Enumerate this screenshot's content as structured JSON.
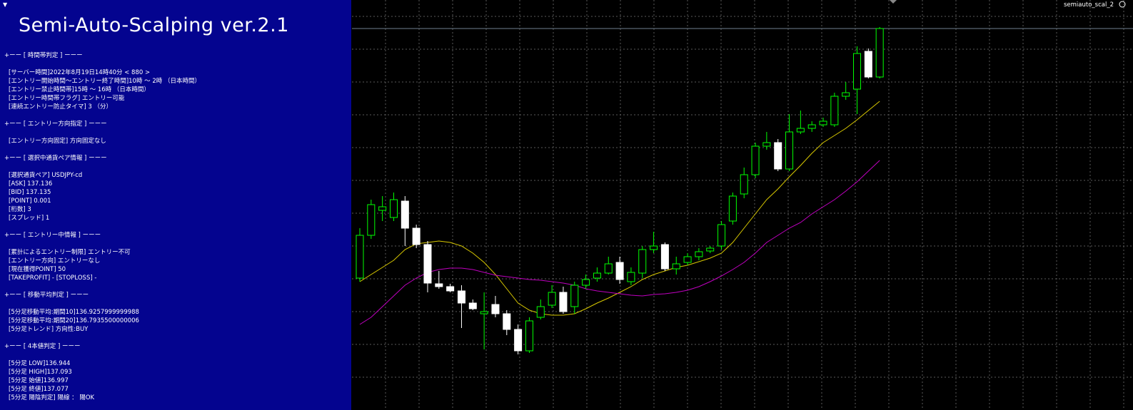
{
  "panel": {
    "title": "Semi-Auto-Scalping ver.2.1",
    "sections": [
      {
        "heading": "+ーー [ 時間帯判定 ] ーーー",
        "items": [
          "[サーバー時間]2022年8月19日14時40分 < 880 >",
          "[エントリー開始時間～エントリー終了時間]10時 ～ 2時 （日本時間）",
          "[エントリー禁止時間帯]15時 ～ 16時 （日本時間）",
          "[エントリー時間帯フラグ] エントリー可能",
          "[連続エントリー防止タイマ] 3 （分）"
        ]
      },
      {
        "heading": "+ーー [ エントリー方向指定 ] ーーー",
        "items": [
          "[エントリー方向固定] 方向固定なし"
        ]
      },
      {
        "heading": "+ーー [ 選択中通貨ペア情報 ] ーーー",
        "items": [
          "[選択通貨ペア] USDJPY-cd",
          "[ASK] 137.136",
          "[BID] 137.135",
          "[POINT] 0.001",
          "[桁数] 3",
          "[スプレッド] 1"
        ]
      },
      {
        "heading": "+ーー [ エントリー中情報 ] ーーー",
        "items": [
          "[累計によるエントリー制限] エントリー不可",
          "[エントリー方向] エントリーなし",
          "[現在獲得POINT] 50",
          "[TAKEPROFIT] - [STOPLOSS] -"
        ]
      },
      {
        "heading": "+ーー [ 移動平均判定 ] ーーー",
        "items": [
          "[5分足移動平均:期間10]136.9257999999988",
          "[5分足移動平均:期間20]136.7935500000006",
          "[5分足トレンド] 方向性:BUY"
        ]
      },
      {
        "heading": "+ーー [ 4本値判定 ] ーーー",
        "items": [
          "[5分足 LOW]136.944",
          "[5分足 HIGH]137.093",
          "[5分足 始値]136.997",
          "[5分足 終値]137.077",
          "[5分足 陽陰判定] 陽線 ： 陽OK"
        ]
      }
    ]
  },
  "chart_data": {
    "type": "candlestick",
    "label": "semiauto_scal_2",
    "ylim": [
      136.9125,
      137.2
    ],
    "grid": true,
    "up_color": "#00ff00",
    "down_color": "#ffffff",
    "open": [
      137.005,
      137.035,
      137.0525,
      137.0475,
      137.059,
      137.04,
      137.0285,
      137.001,
      136.999,
      136.996,
      136.9875,
      136.98,
      136.9865,
      136.98,
      136.969,
      136.954,
      136.9775,
      136.986,
      136.995,
      136.985,
      137.0,
      137.005,
      137.0085,
      137.016,
      137.0025,
      137.0085,
      137.025,
      137.0285,
      137.0115,
      137.016,
      137.02,
      137.024,
      137.0275,
      137.045,
      137.064,
      137.0775,
      137.0975,
      137.1,
      137.0815,
      137.1075,
      137.11,
      137.1125,
      137.1125,
      137.1325,
      137.1375,
      137.164,
      137.146
    ],
    "high": [
      137.04,
      137.06,
      137.0625,
      137.065,
      137.0625,
      137.0425,
      137.031,
      137.01,
      137.001,
      137.0,
      136.99,
      136.995,
      136.9925,
      136.9825,
      136.9725,
      136.9775,
      136.99,
      137.0,
      136.999,
      137.0025,
      137.0075,
      137.0125,
      137.02,
      137.02,
      137.0125,
      137.0275,
      137.0375,
      137.03,
      137.02,
      137.0225,
      137.026,
      137.0275,
      137.045,
      137.065,
      137.0825,
      137.1,
      137.1075,
      137.1025,
      137.12,
      137.1225,
      137.115,
      137.1175,
      137.135,
      137.1425,
      137.1675,
      137.166,
      137.181
    ],
    "low": [
      137.0025,
      137.0325,
      137.045,
      137.045,
      137.0275,
      137.026,
      136.995,
      136.9975,
      136.995,
      136.97,
      136.9825,
      136.955,
      136.9775,
      136.965,
      136.9515,
      136.9525,
      136.976,
      136.984,
      136.98,
      136.98,
      136.9975,
      137.0025,
      137.0075,
      137.001,
      137.0,
      137.005,
      137.0225,
      137.01,
      137.0075,
      137.014,
      137.0175,
      137.0225,
      137.025,
      137.0425,
      137.061,
      137.075,
      137.095,
      137.08,
      137.08,
      137.106,
      137.1075,
      137.111,
      137.111,
      137.13,
      137.12,
      137.145,
      137.145
    ],
    "close": [
      137.035,
      137.0565,
      137.055,
      137.06,
      137.04,
      137.0285,
      137.0015,
      136.999,
      136.996,
      136.9875,
      136.9835,
      136.9815,
      136.98,
      136.969,
      136.954,
      136.975,
      136.985,
      136.995,
      136.9815,
      137.0,
      137.004,
      137.0085,
      137.015,
      137.004,
      137.009,
      137.025,
      137.0275,
      137.0115,
      137.015,
      137.02,
      137.0235,
      137.026,
      137.0425,
      137.0625,
      137.0775,
      137.0975,
      137.1,
      137.0815,
      137.1075,
      137.11,
      137.1125,
      137.115,
      137.1325,
      137.135,
      137.1625,
      137.146,
      137.18
    ],
    "series": [
      {
        "color": "#d8c800",
        "values": [
          137.0025,
          137.0075,
          137.0125,
          137.0175,
          137.025,
          137.029,
          137.03,
          137.031,
          137.03,
          137.0275,
          137.0225,
          137.016,
          137.0075,
          136.9975,
          136.9875,
          136.9825,
          136.98,
          136.979,
          136.979,
          136.98,
          136.9835,
          136.9875,
          136.991,
          136.995,
          136.999,
          137.004,
          137.0075,
          137.01,
          137.0125,
          137.014,
          137.0165,
          137.019,
          137.0225,
          137.03,
          137.04,
          137.05,
          137.06,
          137.0675,
          137.076,
          137.084,
          137.0925,
          137.1,
          137.105,
          137.11,
          137.116,
          137.1225,
          137.129
        ]
      },
      {
        "color": "#c000c0",
        "values": [
          136.9725,
          136.9775,
          136.985,
          136.9925,
          137.0,
          137.005,
          137.009,
          137.011,
          137.012,
          137.012,
          137.011,
          137.009,
          137.007,
          137.006,
          137.005,
          137.004,
          137.0035,
          137.0025,
          137.0015,
          137.0,
          136.9975,
          136.996,
          136.995,
          136.994,
          136.993,
          136.9925,
          136.9935,
          136.994,
          136.995,
          136.9965,
          136.999,
          137.0025,
          137.0065,
          137.011,
          137.016,
          137.0225,
          137.03,
          137.035,
          137.04,
          137.044,
          137.05,
          137.055,
          137.06,
          137.066,
          137.0725,
          137.08,
          137.0875
        ]
      }
    ]
  }
}
